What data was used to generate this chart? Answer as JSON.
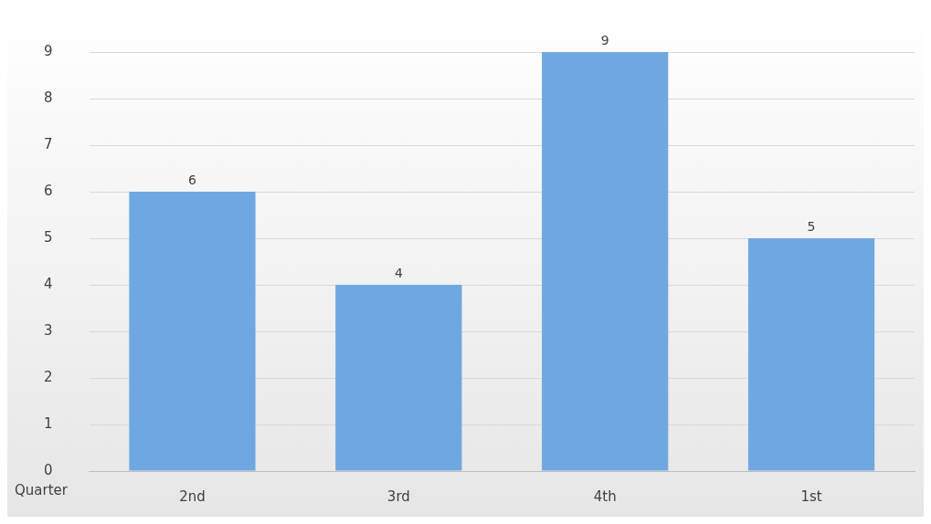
{
  "chart_data": {
    "type": "bar",
    "xlabel": "Quarter",
    "categories": [
      "2nd",
      "3rd",
      "4th",
      "1st"
    ],
    "values": [
      6,
      4,
      9,
      5
    ],
    "color": "#6fa8e0",
    "ylim": [
      0,
      9
    ],
    "yticks": [
      0,
      1,
      2,
      3,
      4,
      5,
      6,
      7,
      8,
      9
    ],
    "grid": "y",
    "data_labels": true,
    "legend": false
  }
}
